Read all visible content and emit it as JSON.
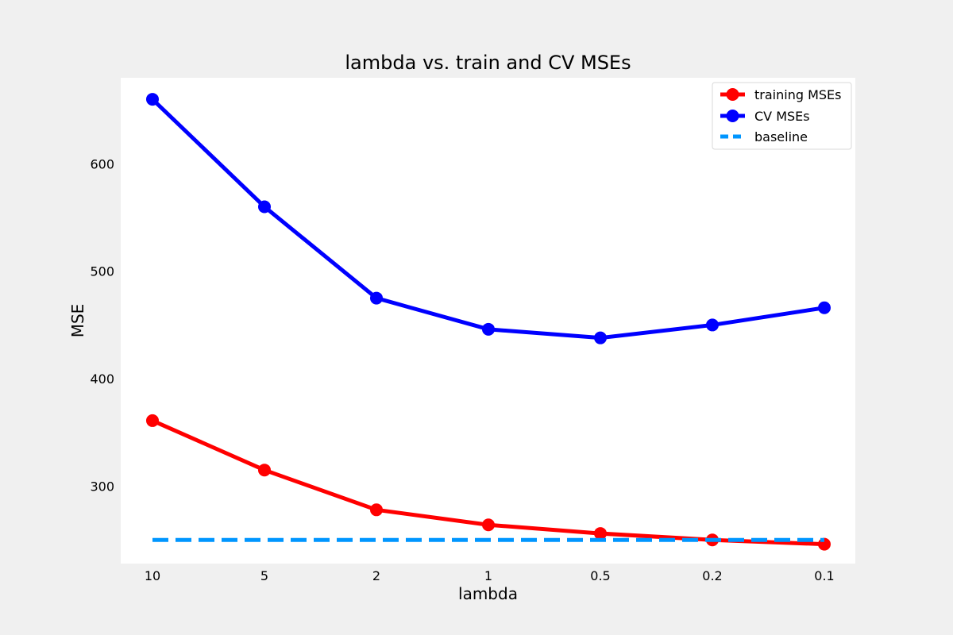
{
  "chart_data": {
    "type": "line",
    "title": "lambda vs. train and CV MSEs",
    "xlabel": "lambda",
    "ylabel": "MSE",
    "categories": [
      "10",
      "5",
      "2",
      "1",
      "0.5",
      "0.2",
      "0.1"
    ],
    "ylim": [
      228,
      680
    ],
    "yticks": [
      300,
      400,
      500,
      600
    ],
    "grid": false,
    "legend_position": "top-right",
    "series": [
      {
        "name": "training MSEs",
        "color": "#ff0000",
        "style": "solid-marker",
        "values": [
          361,
          315,
          278,
          264,
          256,
          250,
          246
        ]
      },
      {
        "name": "CV MSEs",
        "color": "#0000ff",
        "style": "solid-marker",
        "values": [
          660,
          560,
          475,
          446,
          438,
          450,
          466
        ]
      },
      {
        "name": "baseline",
        "color": "#0096ff",
        "style": "dashed",
        "values": [
          250,
          250,
          250,
          250,
          250,
          250,
          250
        ]
      }
    ]
  }
}
